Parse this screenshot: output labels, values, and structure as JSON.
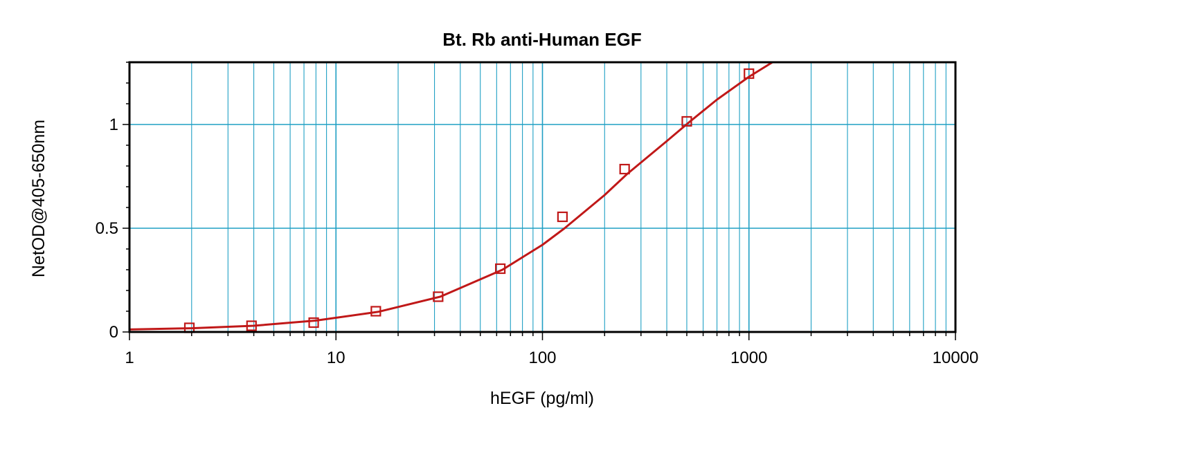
{
  "chart_data": {
    "type": "scatter",
    "title": "Bt. Rb anti-Human EGF",
    "xlabel": "hEGF (pg/ml)",
    "ylabel": "NetOD@405-650nm",
    "xscale": "log",
    "xlim": [
      1,
      10000
    ],
    "ylim": [
      0,
      1.3
    ],
    "x_ticks": [
      1,
      10,
      100,
      1000,
      10000
    ],
    "x_tick_labels": [
      "1",
      "10",
      "100",
      "1000",
      "10000"
    ],
    "y_ticks": [
      0,
      0.5,
      1
    ],
    "y_tick_labels": [
      "0",
      "0.5",
      "1"
    ],
    "grid": true,
    "series": [
      {
        "kind": "points",
        "marker": "square",
        "x": [
          1.95,
          3.9,
          7.8,
          15.6,
          31.25,
          62.5,
          125,
          250,
          500,
          1000
        ],
        "y": [
          0.02,
          0.03,
          0.045,
          0.1,
          0.17,
          0.305,
          0.555,
          0.785,
          1.015,
          1.245
        ]
      },
      {
        "kind": "fit-line",
        "x": [
          1,
          2,
          4,
          8,
          16,
          32,
          64,
          100,
          128,
          200,
          256,
          400,
          512,
          700,
          1000,
          1300
        ],
        "y": [
          0.012,
          0.018,
          0.03,
          0.055,
          0.097,
          0.17,
          0.3,
          0.42,
          0.5,
          0.66,
          0.76,
          0.92,
          1.01,
          1.12,
          1.23,
          1.3
        ]
      }
    ],
    "colors": {
      "grid": "#1f9fc4",
      "data": "#c01818",
      "axis": "#000000"
    }
  }
}
